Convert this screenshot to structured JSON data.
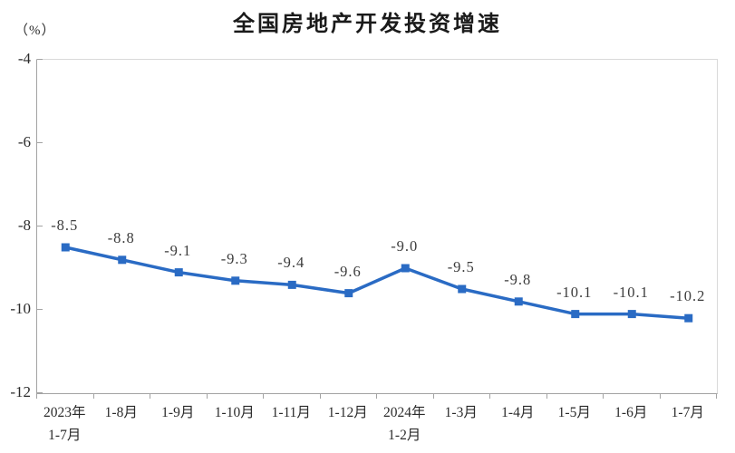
{
  "chart": {
    "title": "全国房地产开发投资增速",
    "unit_label": "（%）"
  },
  "chart_data": {
    "type": "line",
    "title": "全国房地产开发投资增速",
    "unit": "（%）",
    "categories": [
      "2023年\n1-7月",
      "1-8月",
      "1-9月",
      "1-10月",
      "1-11月",
      "1-12月",
      "2024年\n1-2月",
      "1-3月",
      "1-4月",
      "1-5月",
      "1-6月",
      "1-7月"
    ],
    "series": [
      {
        "name": "全国房地产开发投资增速",
        "values": [
          -8.5,
          -8.8,
          -9.1,
          -9.3,
          -9.4,
          -9.6,
          -9.0,
          -9.5,
          -9.8,
          -10.1,
          -10.1,
          -10.2
        ]
      }
    ],
    "data_labels": [
      "-8.5",
      "-8.8",
      "-9.1",
      "-9.3",
      "-9.4",
      "-9.6",
      "-9.0",
      "-9.5",
      "-9.8",
      "-10.1",
      "-10.1",
      "-10.2"
    ],
    "xlabel": "",
    "ylabel": "",
    "ylim": [
      -12,
      -4
    ],
    "yticks": [
      -4,
      -6,
      -8,
      -10,
      -12
    ],
    "grid": false,
    "legend": "none",
    "line_color": "#2a6bc4",
    "marker": "square"
  }
}
